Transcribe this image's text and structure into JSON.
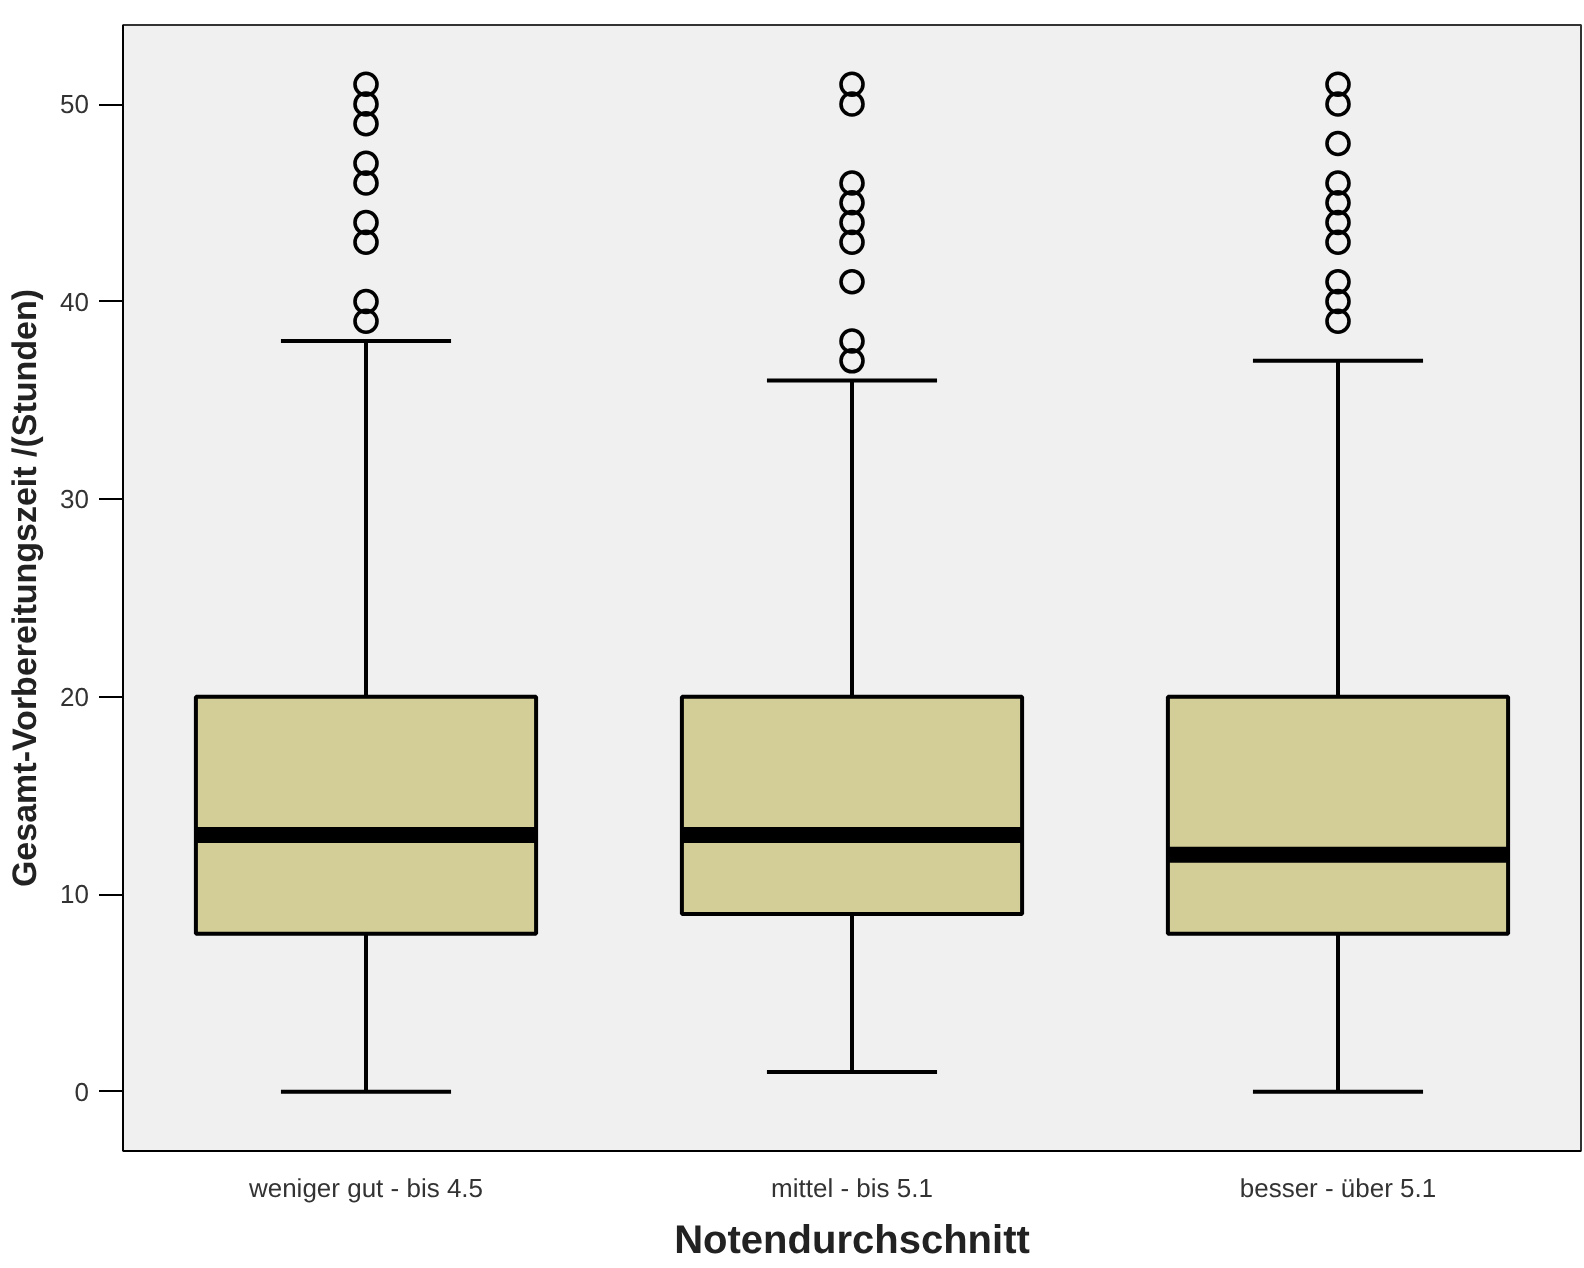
{
  "chart_data": {
    "type": "box",
    "xlabel": "Notendurchschnitt",
    "ylabel": "Gesamt-Vorbereitungszeit /(Stunden)",
    "categories": [
      "weniger gut - bis 4.5",
      "mittel - bis 5.1",
      "besser - über 5.1"
    ],
    "color": "#d3ce98",
    "boxes": [
      {
        "low": 0,
        "q1": 8,
        "median": 13,
        "q3": 20,
        "high": 38,
        "outliers": [
          39,
          40,
          43,
          44,
          46,
          47,
          49,
          50,
          51
        ]
      },
      {
        "low": 1,
        "q1": 9,
        "median": 13,
        "q3": 20,
        "high": 36,
        "outliers": [
          37,
          38,
          41,
          43,
          44,
          45,
          46,
          50,
          51
        ]
      },
      {
        "low": 0,
        "q1": 8,
        "median": 12,
        "q3": 20,
        "high": 37,
        "outliers": [
          39,
          40,
          41,
          43,
          44,
          45,
          46,
          48,
          50,
          51
        ]
      }
    ],
    "ylim": [
      -3,
      54
    ],
    "yticks": [
      0,
      10,
      20,
      30,
      40,
      50
    ],
    "grid": false
  }
}
